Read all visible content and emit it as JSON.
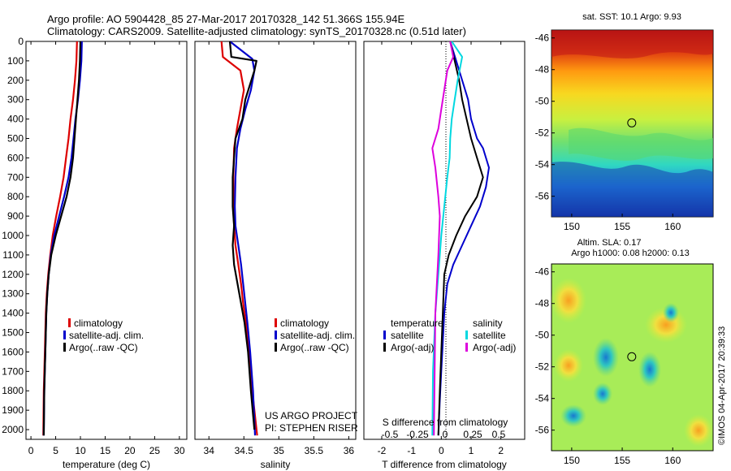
{
  "header": {
    "title_line1": "Argo profile: AO 5904428_85 27-Mar-2017 20170328_142 51.366S 155.94E",
    "title_line2": "Climatology: CARS2009. Satellite-adjusted climatology: synTS_20170328.nc (0.51d later)"
  },
  "colors": {
    "climatology": "#dd0000",
    "satellite": "#0000cc",
    "argo": "#000000",
    "sal_satellite": "#00d8e0",
    "sal_argo": "#dd00dd"
  },
  "chart_data": [
    {
      "id": "temperature",
      "type": "line",
      "xlabel": "temperature (deg C)",
      "ylabel": "",
      "xlim": [
        -1,
        31.5
      ],
      "ylim": [
        2050,
        0
      ],
      "xticks": [
        0,
        5,
        10,
        15,
        20,
        25,
        30
      ],
      "yticks": [
        0,
        100,
        200,
        300,
        400,
        500,
        600,
        700,
        800,
        900,
        1000,
        1100,
        1200,
        1300,
        1400,
        1500,
        1600,
        1700,
        1800,
        1900,
        2000
      ],
      "legend": [
        "climatology",
        "satellite-adj. clim.",
        "Argo(..raw -QC)"
      ],
      "legend_position": "lower-middle",
      "series": [
        {
          "name": "climatology",
          "color": "#dd0000",
          "x": [
            9.3,
            9.2,
            8.9,
            8.5,
            8.0,
            7.6,
            7.1,
            6.6,
            5.9,
            5.1,
            4.4,
            3.9,
            3.5,
            3.2,
            3.0,
            2.8,
            2.6,
            2.5
          ],
          "y": [
            0,
            100,
            200,
            300,
            400,
            500,
            600,
            700,
            800,
            900,
            1000,
            1100,
            1200,
            1300,
            1400,
            1600,
            1800,
            2030
          ]
        },
        {
          "name": "satellite-adj. clim.",
          "color": "#0000cc",
          "x": [
            10.3,
            10.2,
            9.9,
            9.5,
            9.0,
            8.6,
            8.2,
            7.6,
            6.7,
            5.7,
            4.7,
            4.0,
            3.6,
            3.3,
            3.1,
            2.9,
            2.7,
            2.6
          ],
          "y": [
            0,
            100,
            200,
            300,
            400,
            500,
            600,
            700,
            800,
            900,
            1000,
            1100,
            1200,
            1300,
            1400,
            1600,
            1800,
            2030
          ]
        },
        {
          "name": "Argo(..raw -QC)",
          "color": "#000000",
          "x": [
            10.0,
            9.9,
            9.7,
            9.4,
            9.1,
            8.8,
            8.5,
            8.0,
            7.2,
            6.1,
            5.0,
            4.1,
            3.6,
            3.3,
            3.1,
            2.9,
            2.7,
            2.6
          ],
          "y": [
            0,
            100,
            200,
            300,
            400,
            500,
            600,
            700,
            800,
            900,
            1000,
            1100,
            1200,
            1300,
            1400,
            1600,
            1800,
            2030
          ]
        }
      ]
    },
    {
      "id": "salinity",
      "type": "line",
      "xlabel": "salinity",
      "ylabel": "",
      "xlim": [
        33.8,
        36.1
      ],
      "ylim": [
        2050,
        0
      ],
      "xticks": [
        34,
        34.5,
        35,
        35.5,
        36
      ],
      "legend": [
        "climatology",
        "satellite-adj. clim.",
        "Argo(..raw -QC)"
      ],
      "legend_position": "lower-right",
      "annotations": [
        "US ARGO PROJECT",
        "PI: STEPHEN RISER"
      ],
      "series": [
        {
          "name": "climatology",
          "color": "#dd0000",
          "x": [
            34.18,
            34.2,
            34.45,
            34.5,
            34.45,
            34.4,
            34.36,
            34.35,
            34.35,
            34.36,
            34.38,
            34.42,
            34.46,
            34.49,
            34.53,
            34.57,
            34.62,
            34.69
          ],
          "y": [
            0,
            80,
            150,
            250,
            350,
            450,
            550,
            700,
            850,
            950,
            1050,
            1150,
            1250,
            1350,
            1450,
            1600,
            1800,
            2030
          ]
        },
        {
          "name": "satellite-adj. clim.",
          "color": "#0000cc",
          "x": [
            34.3,
            34.62,
            34.65,
            34.6,
            34.52,
            34.45,
            34.4,
            34.38,
            34.37,
            34.38,
            34.42,
            34.46,
            34.49,
            34.52,
            34.55,
            34.59,
            34.63,
            34.66
          ],
          "y": [
            0,
            90,
            150,
            250,
            350,
            450,
            550,
            700,
            850,
            950,
            1050,
            1150,
            1250,
            1350,
            1450,
            1600,
            1800,
            2030
          ]
        },
        {
          "name": "Argo(..raw -QC)",
          "color": "#000000",
          "x": [
            34.3,
            34.32,
            34.68,
            34.65,
            34.52,
            34.48,
            34.38,
            34.34,
            34.34,
            34.36,
            34.34,
            34.36,
            34.41,
            34.46,
            34.51,
            34.56,
            34.6,
            34.65
          ],
          "y": [
            0,
            80,
            100,
            150,
            300,
            400,
            500,
            700,
            850,
            950,
            1050,
            1150,
            1250,
            1350,
            1450,
            1600,
            1800,
            2000
          ]
        }
      ]
    },
    {
      "id": "difference",
      "type": "line",
      "xlabel": "T difference from climatology",
      "x2label": "S difference from climatology",
      "xlim": [
        -2.6,
        2.8
      ],
      "ylim": [
        2050,
        0
      ],
      "xticks": [
        -2,
        -1,
        0,
        1,
        2
      ],
      "x2ticks": [
        "-0.5",
        "-0.25",
        "0",
        "0.25",
        "0.5"
      ],
      "legend_headers": [
        "temperature",
        "salinity"
      ],
      "legend": [
        "satellite",
        "Argo(-adj)",
        "satellite",
        "Argo(-adj)"
      ],
      "legend_position": "lower-center",
      "series": [
        {
          "name": "temperature satellite",
          "color": "#0000cc",
          "x": [
            0.3,
            0.5,
            0.7,
            0.9,
            1.0,
            1.2,
            1.4,
            1.6,
            1.5,
            1.3,
            1.0,
            0.7,
            0.4,
            0.2,
            0.1,
            0.05,
            0.0,
            -0.05,
            -0.1
          ],
          "y": [
            0,
            100,
            200,
            300,
            400,
            500,
            550,
            650,
            750,
            850,
            950,
            1050,
            1150,
            1250,
            1400,
            1550,
            1700,
            1850,
            2030
          ]
        },
        {
          "name": "temperature Argo(-adj)",
          "color": "#000000",
          "x": [
            0.3,
            0.45,
            0.6,
            0.7,
            0.85,
            1.0,
            1.2,
            1.4,
            1.2,
            0.8,
            0.5,
            0.25,
            0.1,
            0.05,
            0.0,
            -0.05,
            -0.1
          ],
          "y": [
            0,
            100,
            200,
            300,
            400,
            500,
            600,
            700,
            800,
            900,
            1000,
            1100,
            1200,
            1400,
            1600,
            1800,
            2030
          ]
        },
        {
          "name": "salinity satellite",
          "color": "#00d8e0",
          "x": [
            0.35,
            0.7,
            0.55,
            0.45,
            0.35,
            0.3,
            0.28,
            0.2,
            0.1,
            0.0,
            -0.1,
            -0.2,
            -0.28,
            -0.3
          ],
          "y": [
            0,
            80,
            200,
            300,
            400,
            500,
            600,
            700,
            850,
            1000,
            1200,
            1400,
            1700,
            2030
          ]
        },
        {
          "name": "salinity Argo(-adj)",
          "color": "#dd00dd",
          "x": [
            0.3,
            0.4,
            0.2,
            0.1,
            0.0,
            -0.1,
            -0.3,
            -0.2,
            -0.1,
            -0.05,
            -0.1,
            -0.2,
            -0.25
          ],
          "y": [
            0,
            80,
            150,
            250,
            350,
            450,
            550,
            650,
            800,
            900,
            1100,
            1400,
            2030
          ]
        }
      ]
    },
    {
      "id": "sst_map",
      "type": "heatmap",
      "title": "sat. SST: 10.1  Argo: 9.93",
      "xlim": [
        148,
        164
      ],
      "ylim": [
        -57.3,
        -45.5
      ],
      "xticks": [
        150,
        155,
        160
      ],
      "yticks": [
        -46,
        -48,
        -50,
        -52,
        -54,
        -56
      ],
      "marker": {
        "lon": 155.94,
        "lat": -51.366
      }
    },
    {
      "id": "sla_map",
      "type": "heatmap",
      "title_line1": "Altim. SLA: 0.17",
      "title_line2": "Argo h1000: 0.08 h2000: 0.13",
      "xlim": [
        148,
        164
      ],
      "ylim": [
        -57.3,
        -45.5
      ],
      "xticks": [
        150,
        155,
        160
      ],
      "yticks": [
        -46,
        -48,
        -50,
        -52,
        -54,
        -56
      ],
      "marker": {
        "lon": 155.94,
        "lat": -51.366
      }
    }
  ],
  "footer": {
    "credit": "©IMOS 04-Apr-2017 20:39:33"
  }
}
